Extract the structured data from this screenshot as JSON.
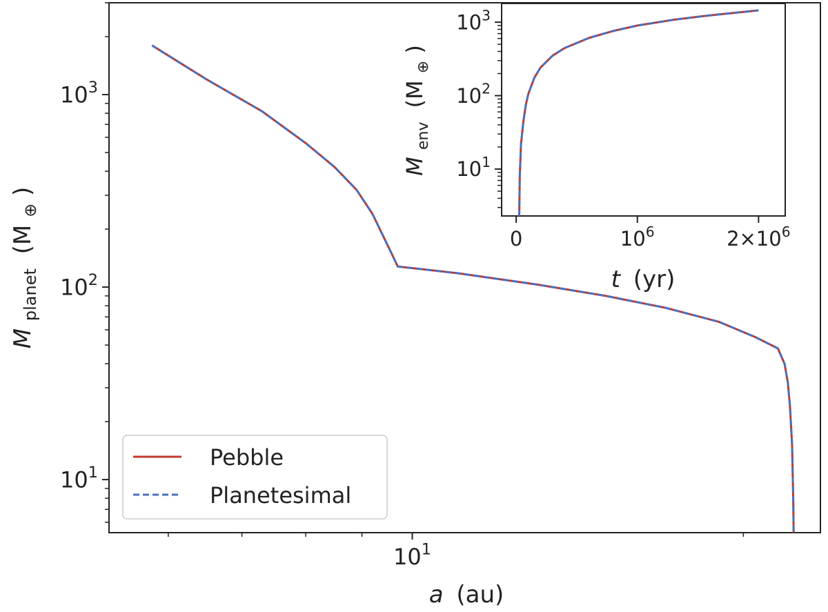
{
  "chart_data": [
    {
      "type": "line",
      "role": "main",
      "xlabel": {
        "var": "a",
        "unit": "(au)"
      },
      "ylabel": {
        "var": "M",
        "sub": "planet",
        "unit": "(M",
        "unit_sub": "⊕",
        "unit_close": ")"
      },
      "xscale": "log",
      "yscale": "log",
      "xlim": [
        5.3,
        23.5
      ],
      "ylim": [
        5.3,
        3000
      ],
      "x_ticks": [
        {
          "value": 10,
          "base": "10",
          "exp": "1"
        }
      ],
      "y_ticks": [
        {
          "value": 10,
          "base": "10",
          "exp": "1"
        },
        {
          "value": 100,
          "base": "10",
          "exp": "2"
        },
        {
          "value": 1000,
          "base": "10",
          "exp": "3"
        }
      ],
      "legend": {
        "placement": "lower-left",
        "entries": [
          "Pebble",
          "Planetesimal"
        ]
      },
      "series": [
        {
          "name": "Pebble",
          "color": "#c0392b",
          "style": "solid",
          "x": [
            5.8,
            6.5,
            7.3,
            8.0,
            8.5,
            8.9,
            9.2,
            9.45,
            9.6,
            9.7,
            11.0,
            13.0,
            15.0,
            17.0,
            19.0,
            20.5,
            21.5,
            21.8,
            21.95,
            22.05,
            22.15,
            22.2,
            22.22
          ],
          "y": [
            1800,
            1200,
            820,
            560,
            420,
            320,
            240,
            175,
            145,
            128,
            118,
            103,
            90,
            78,
            66,
            55,
            48,
            40,
            32,
            24,
            15,
            8,
            5.3
          ]
        },
        {
          "name": "Planetesimal",
          "color": "#4a6fc0",
          "style": "dashed",
          "x": [
            5.8,
            6.5,
            7.3,
            8.0,
            8.5,
            8.9,
            9.2,
            9.45,
            9.6,
            9.7,
            11.0,
            13.0,
            15.0,
            17.0,
            19.0,
            20.5,
            21.5,
            21.8,
            21.95,
            22.05,
            22.15,
            22.2,
            22.22
          ],
          "y": [
            1800,
            1200,
            820,
            560,
            420,
            320,
            240,
            175,
            145,
            128,
            118,
            103,
            90,
            78,
            66,
            55,
            48,
            40,
            32,
            24,
            15,
            8,
            5.3
          ]
        }
      ]
    },
    {
      "type": "line",
      "role": "inset",
      "xlabel": {
        "var": "t",
        "unit": "(yr)"
      },
      "ylabel": {
        "var": "M",
        "sub": "env",
        "unit": "(M",
        "unit_sub": "⊕",
        "unit_close": ")"
      },
      "xscale": "linear",
      "yscale": "log",
      "xlim": [
        -120000,
        2220000
      ],
      "ylim": [
        2.3,
        1800
      ],
      "x_ticks": [
        {
          "value": 0,
          "base": "0",
          "exp": ""
        },
        {
          "value": 1000000,
          "base": "10",
          "exp": "6"
        },
        {
          "value": 2000000,
          "base": "2×10",
          "exp": "6"
        }
      ],
      "y_ticks": [
        {
          "value": 10,
          "base": "10",
          "exp": "1"
        },
        {
          "value": 100,
          "base": "10",
          "exp": "2"
        },
        {
          "value": 1000,
          "base": "10",
          "exp": "3"
        }
      ],
      "series": [
        {
          "name": "Pebble",
          "color": "#c0392b",
          "style": "solid",
          "x": [
            25000,
            30000,
            40000,
            60000,
            80000,
            100000,
            150000,
            200000,
            300000,
            400000,
            600000,
            800000,
            1000000,
            1300000,
            1600000,
            2000000
          ],
          "y": [
            2.3,
            8,
            22,
            45,
            75,
            105,
            175,
            240,
            350,
            445,
            610,
            760,
            900,
            1080,
            1240,
            1450
          ]
        },
        {
          "name": "Planetesimal",
          "color": "#4a6fc0",
          "style": "dashed",
          "x": [
            25000,
            30000,
            40000,
            60000,
            80000,
            100000,
            150000,
            200000,
            300000,
            400000,
            600000,
            800000,
            1000000,
            1300000,
            1600000,
            2000000
          ],
          "y": [
            2.3,
            8,
            22,
            45,
            75,
            105,
            175,
            240,
            350,
            445,
            610,
            760,
            900,
            1080,
            1240,
            1450
          ]
        }
      ]
    }
  ]
}
